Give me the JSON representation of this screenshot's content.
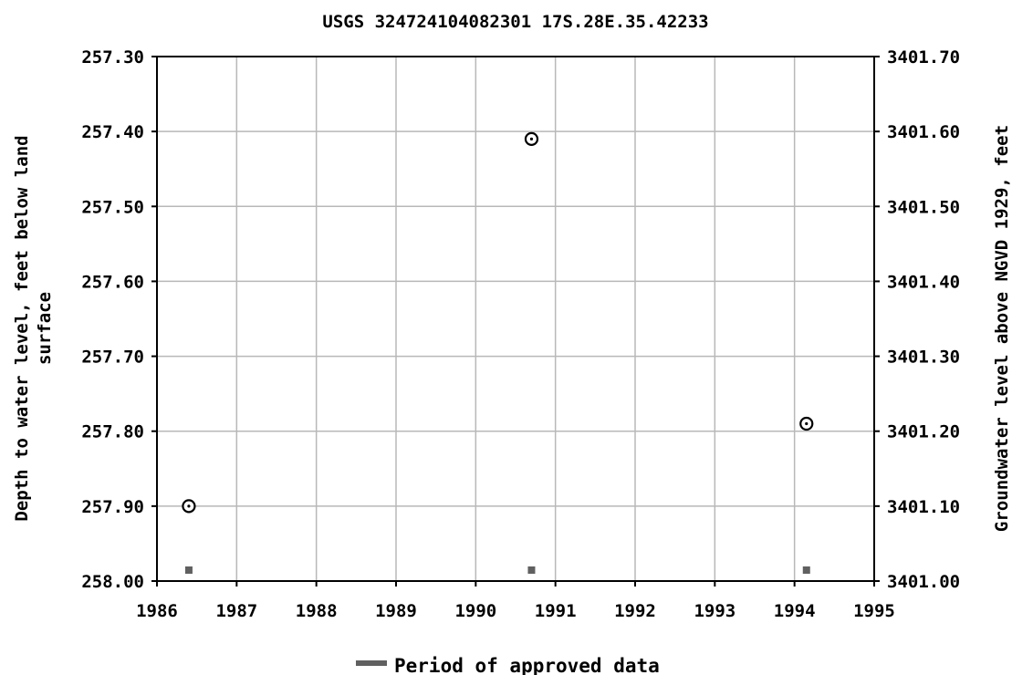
{
  "chart_data": {
    "type": "scatter",
    "title": "USGS 324724104082301 17S.28E.35.42233",
    "ylabel_left_line1": "Depth to water level, feet below land",
    "ylabel_left_line2": "surface",
    "ylabel_right": "Groundwater level above NGVD 1929, feet",
    "xlim": [
      1986,
      1995
    ],
    "ylim_left": [
      257.3,
      258.0
    ],
    "ylim_left_inverted": true,
    "ylim_right": [
      3401.0,
      3401.7
    ],
    "x_ticks": [
      "1986",
      "1987",
      "1988",
      "1989",
      "1990",
      "1991",
      "1992",
      "1993",
      "1994",
      "1995"
    ],
    "y_left_ticks": [
      "257.30",
      "257.40",
      "257.50",
      "257.60",
      "257.70",
      "257.80",
      "257.90",
      "258.00"
    ],
    "y_right_ticks": [
      "3401.70",
      "3401.60",
      "3401.50",
      "3401.40",
      "3401.30",
      "3401.20",
      "3401.10",
      "3401.00"
    ],
    "grid": true,
    "series": [
      {
        "x": [
          1986.4,
          1990.7,
          1994.15
        ],
        "y": [
          257.9,
          257.41,
          257.79
        ]
      }
    ],
    "approved_periods": [
      1986.4,
      1990.7,
      1994.15
    ],
    "legend": {
      "position": "bottom",
      "label": "Period of approved data"
    },
    "colors": {
      "grid": "#b8b8b8",
      "marker": "#000000",
      "approved": "#606060"
    }
  }
}
